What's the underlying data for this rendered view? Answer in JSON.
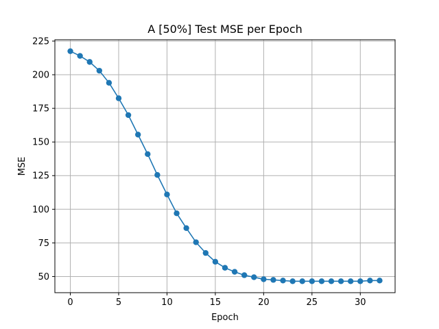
{
  "chart_data": {
    "type": "line",
    "title": "A [50%] Test MSE per Epoch",
    "xlabel": "Epoch",
    "ylabel": "MSE",
    "xlim": [
      -1.6,
      33.6
    ],
    "ylim": [
      38,
      226
    ],
    "xticks": [
      0,
      5,
      10,
      15,
      20,
      25,
      30
    ],
    "yticks": [
      50,
      75,
      100,
      125,
      150,
      175,
      200,
      225
    ],
    "grid": true,
    "legend": "none",
    "marker": "circle",
    "series_color": "#1f77b4",
    "grid_color": "#b0b0b0",
    "x": [
      0,
      1,
      2,
      3,
      4,
      5,
      6,
      7,
      8,
      9,
      10,
      11,
      12,
      13,
      14,
      15,
      16,
      17,
      18,
      19,
      20,
      21,
      22,
      23,
      24,
      25,
      26,
      27,
      28,
      29,
      30,
      31,
      32
    ],
    "y": [
      217.5,
      214,
      209.5,
      203,
      194,
      182.5,
      170,
      155.5,
      141,
      125.5,
      111,
      97,
      86,
      75.5,
      67.5,
      61,
      56.5,
      53.5,
      51,
      49.5,
      48,
      47.5,
      47,
      46.5,
      46.5,
      46.5,
      46.5,
      46.5,
      46.5,
      46.5,
      46.5,
      47,
      47
    ]
  }
}
